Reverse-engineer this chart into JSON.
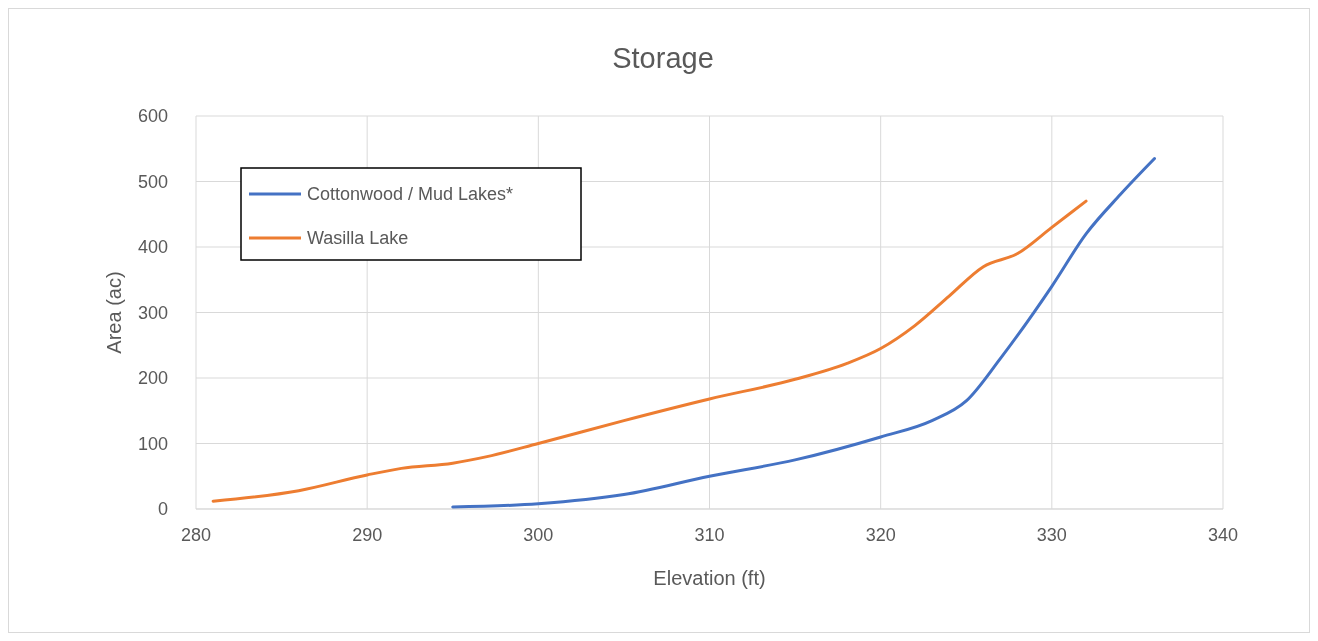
{
  "chart_data": {
    "type": "line",
    "title": "Storage",
    "xlabel": "Elevation (ft)",
    "ylabel": "Area (ac)",
    "xlim": [
      280,
      340
    ],
    "xticks": [
      280,
      290,
      300,
      310,
      320,
      330,
      340
    ],
    "ylim": [
      0,
      600
    ],
    "yticks": [
      0,
      100,
      200,
      300,
      400,
      500,
      600
    ],
    "grid": true,
    "legend": "top left",
    "series": [
      {
        "name": "Cottonwood / Mud Lakes*",
        "color": "#4472c4",
        "x": [
          295,
          300,
          305,
          310,
          315,
          320,
          323,
          325,
          327,
          330,
          332,
          334,
          336
        ],
        "values": [
          3,
          8,
          22,
          50,
          75,
          110,
          135,
          165,
          230,
          340,
          420,
          480,
          535
        ]
      },
      {
        "name": "Wasilla Lake",
        "color": "#ed7d31",
        "x": [
          281,
          286,
          290,
          292,
          295,
          297,
          300,
          305,
          310,
          315,
          318,
          320,
          322,
          324,
          326,
          328,
          330,
          332
        ],
        "values": [
          12,
          28,
          52,
          62,
          70,
          80,
          100,
          135,
          168,
          198,
          222,
          245,
          280,
          325,
          370,
          390,
          430,
          470
        ]
      }
    ]
  }
}
